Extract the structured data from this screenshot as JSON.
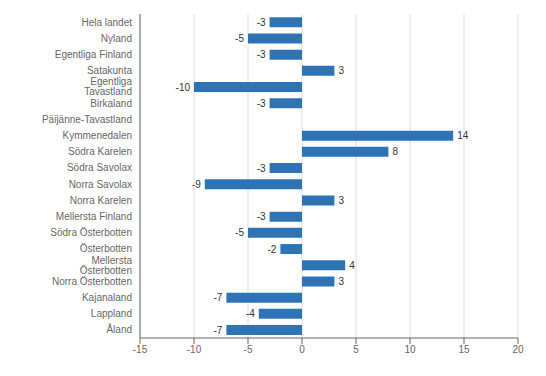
{
  "chart_data": {
    "type": "bar",
    "orientation": "horizontal",
    "categories": [
      "Hela landet",
      "Nyland",
      "Egentliga Finland",
      "Satakunta",
      "Egentliga Tavastland",
      "Birkaland",
      "Päijänne-Tavastland",
      "Kymmenedalen",
      "Södra Karelen",
      "Södra Savolax",
      "Norra Savolax",
      "Norra Karelen",
      "Mellersta Finland",
      "Södra Österbotten",
      "Österbotten",
      "Mellersta Österbotten",
      "Norra Österbotten",
      "Kajanaland",
      "Lappland",
      "Åland"
    ],
    "values": [
      -3,
      -5,
      -3,
      3,
      -10,
      -3,
      0,
      14,
      8,
      -3,
      -9,
      3,
      -3,
      -5,
      -2,
      4,
      3,
      -7,
      -4,
      -7
    ],
    "color": "#2E74B5",
    "xlim": [
      -15,
      20
    ],
    "xticks": [
      -15,
      -10,
      -5,
      0,
      5,
      10,
      15,
      20
    ],
    "grid": true,
    "data_labels": true
  }
}
